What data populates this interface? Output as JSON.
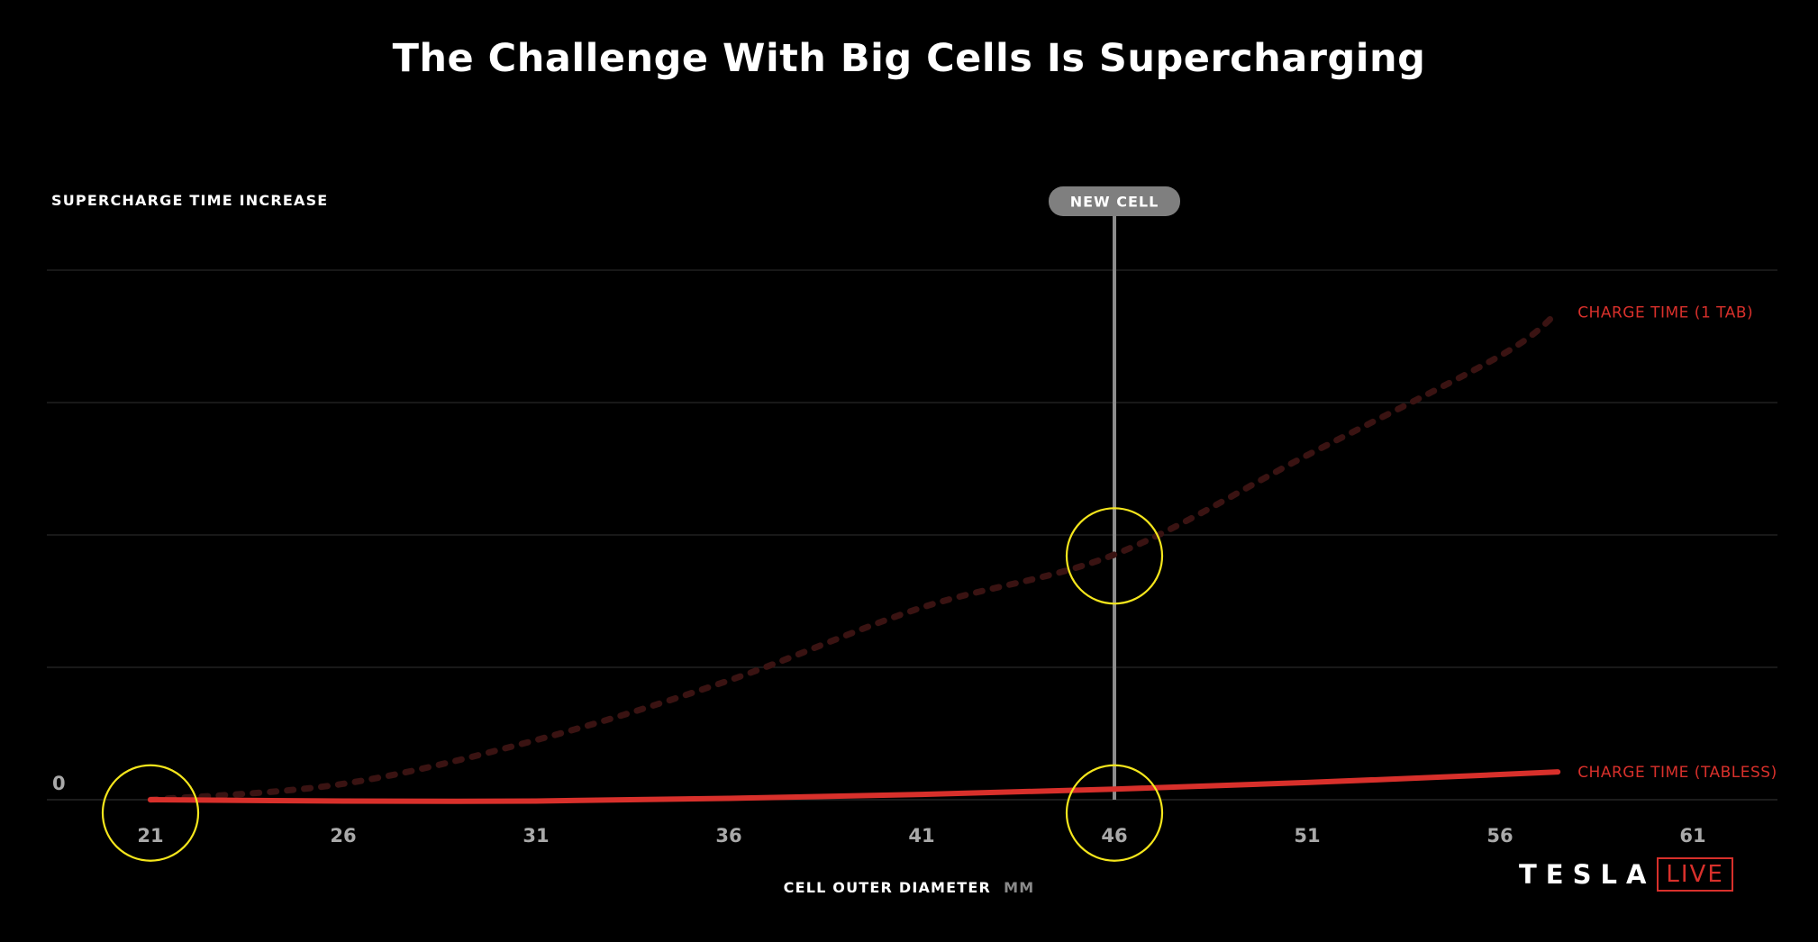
{
  "chart_data": {
    "type": "line",
    "title": "The Challenge With Big Cells Is Supercharging",
    "ylabel": "SUPERCHARGE TIME INCREASE",
    "xlabel": "CELL OUTER DIAMETER",
    "xunit": "MM",
    "x_ticks": [
      "21",
      "26",
      "31",
      "36",
      "41",
      "46",
      "51",
      "56",
      "61"
    ],
    "y_ticks": [
      "0"
    ],
    "xlim": [
      18.2,
      63
    ],
    "ylim": [
      0,
      4
    ],
    "grid": true,
    "marker": {
      "x": 46,
      "label": "NEW CELL"
    },
    "series": [
      {
        "name": "CHARGE TIME (1 TAB)",
        "style": "dotted",
        "color": "#3a1312",
        "x": [
          21,
          26,
          31,
          36,
          41,
          46,
          51,
          56,
          57.5
        ],
        "y": [
          0,
          0.12,
          0.45,
          0.9,
          1.45,
          1.85,
          2.6,
          3.35,
          3.68
        ]
      },
      {
        "name": "CHARGE TIME (TABLESS)",
        "style": "solid",
        "color": "#d8302b",
        "x": [
          21,
          26,
          31,
          36,
          41,
          46,
          51,
          56,
          57.5
        ],
        "y": [
          0,
          -0.01,
          -0.01,
          0.01,
          0.04,
          0.08,
          0.13,
          0.19,
          0.21
        ]
      }
    ],
    "highlights": [
      {
        "x": 21,
        "y": -0.1
      },
      {
        "x": 46,
        "y": 1.84
      },
      {
        "x": 46,
        "y": -0.1
      }
    ],
    "highlight_color": "#f5e61c"
  },
  "logo": {
    "brand": "TESLA",
    "event": "LIVE"
  }
}
